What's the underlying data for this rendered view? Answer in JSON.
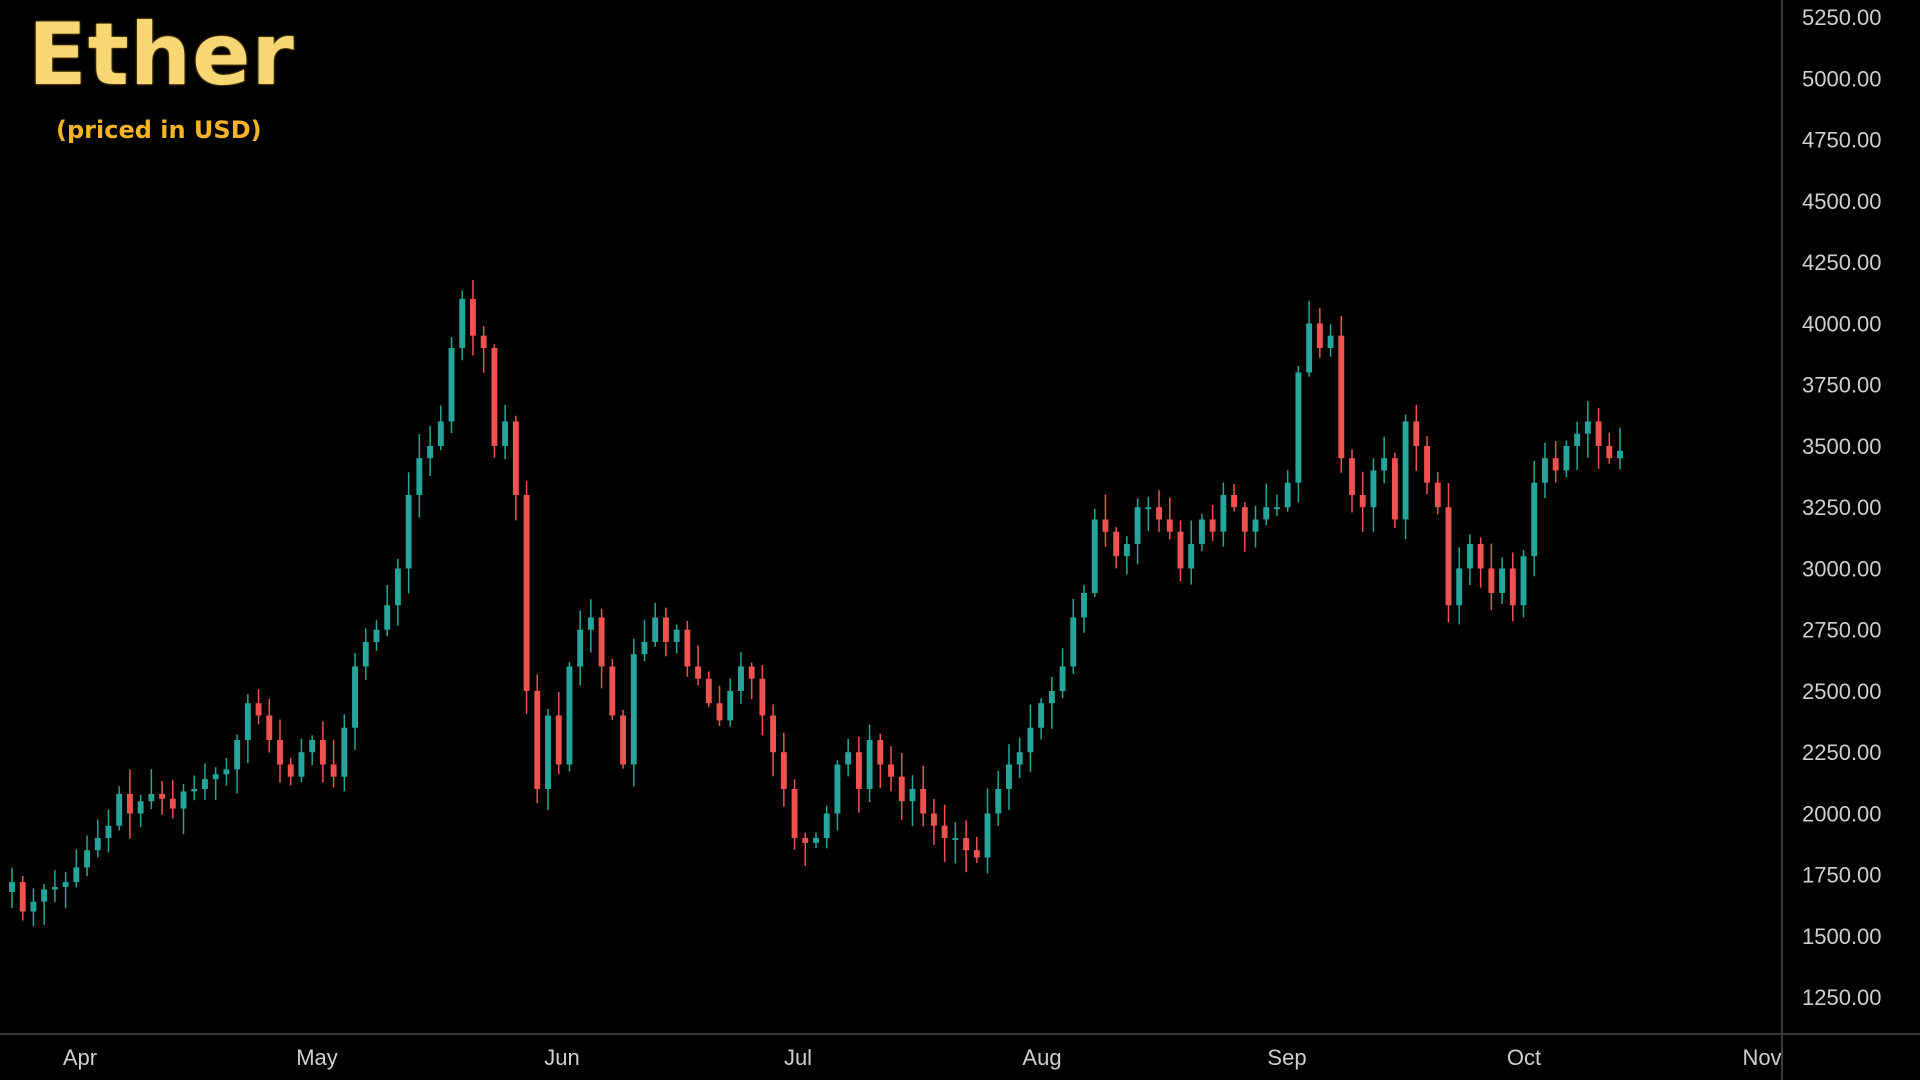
{
  "chart_data": {
    "type": "candlestick",
    "title": "Ether",
    "subtitle": "(priced in USD)",
    "ylim": [
      1100,
      5320
    ],
    "y_ticks": [
      "5250.00",
      "5000.00",
      "4750.00",
      "4500.00",
      "4250.00",
      "4000.00",
      "3750.00",
      "3500.00",
      "3250.00",
      "3000.00",
      "2750.00",
      "2500.00",
      "2250.00",
      "2000.00",
      "1750.00",
      "1500.00",
      "1250.00"
    ],
    "x_ticks": [
      "Apr",
      "May",
      "Jun",
      "Jul",
      "Aug",
      "Sep",
      "Oct",
      "Nov"
    ],
    "colors": {
      "up": "#26a69a",
      "down": "#ef5350",
      "title": "#f7d774",
      "subtitle": "#f5b428",
      "background": "#000000",
      "axis_text": "#cfcfcf"
    },
    "close_series": [
      1720,
      1600,
      1640,
      1690,
      1700,
      1720,
      1780,
      1850,
      1900,
      1950,
      2080,
      2000,
      2050,
      2080,
      2060,
      2020,
      2090,
      2100,
      2140,
      2160,
      2180,
      2300,
      2450,
      2400,
      2300,
      2200,
      2150,
      2250,
      2300,
      2200,
      2150,
      2350,
      2600,
      2700,
      2750,
      2850,
      3000,
      3300,
      3450,
      3500,
      3600,
      3900,
      4100,
      3950,
      3900,
      3500,
      3600,
      3300,
      2500,
      2100,
      2400,
      2200,
      2600,
      2750,
      2800,
      2600,
      2400,
      2200,
      2650,
      2700,
      2800,
      2700,
      2750,
      2600,
      2550,
      2450,
      2380,
      2500,
      2600,
      2550,
      2400,
      2250,
      2100,
      1900,
      1880,
      1900,
      2000,
      2200,
      2250,
      2100,
      2300,
      2200,
      2150,
      2050,
      2100,
      2000,
      1950,
      1900,
      1900,
      1850,
      1820,
      2000,
      2100,
      2200,
      2250,
      2350,
      2450,
      2500,
      2600,
      2800,
      2900,
      3200,
      3150,
      3050,
      3100,
      3250,
      3250,
      3200,
      3150,
      3000,
      3100,
      3200,
      3150,
      3300,
      3250,
      3150,
      3200,
      3250,
      3250,
      3350,
      3800,
      4000,
      3900,
      3950,
      3450,
      3300,
      3250,
      3400,
      3450,
      3200,
      3600,
      3500,
      3350,
      3250,
      2850,
      3000,
      3100,
      3000,
      2900,
      3000,
      2850,
      3050,
      3350,
      3450,
      3400,
      3500,
      3550,
      3600,
      3500,
      3450,
      3480
    ]
  }
}
